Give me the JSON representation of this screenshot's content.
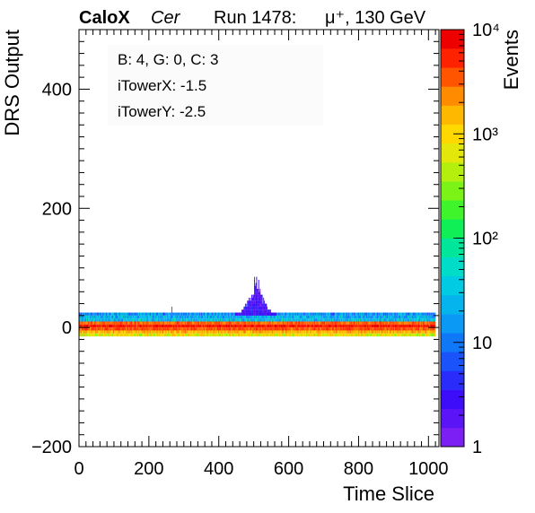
{
  "header": {
    "experiment": "CaloX",
    "channel": "Cer",
    "run": "Run 1478:",
    "beam": "μ⁺, 130 GeV"
  },
  "info_box": {
    "line1": "B: 4, G: 0, C: 3",
    "line2": "iTowerX: -1.5",
    "line3": "iTowerY: -2.5"
  },
  "chart_data": {
    "type": "heatmap",
    "xlabel": "Time Slice",
    "ylabel": "DRS Output",
    "zlabel": "Events",
    "xlim": [
      0,
      1030
    ],
    "ylim": [
      -200,
      500
    ],
    "z_scale": "log",
    "zlim": [
      1,
      10000
    ],
    "x_ticks": [
      0,
      200,
      400,
      600,
      800,
      1000
    ],
    "y_ticks": [
      -200,
      0,
      200,
      400
    ],
    "z_ticks": [
      "1",
      "10",
      "10²",
      "10³",
      "10⁴"
    ],
    "grid": false,
    "palette": [
      "#7b1ff4",
      "#5a14f6",
      "#3d0dfa",
      "#2a2cfa",
      "#1b53fa",
      "#0f78f9",
      "#0a99f4",
      "#06b4ed",
      "#00cbe3",
      "#00dcc7",
      "#00e69a",
      "#10ef55",
      "#3ff42a",
      "#7cf317",
      "#b5ef0e",
      "#e3e80a",
      "#ffd800",
      "#ffb800",
      "#ff8c00",
      "#ff5500",
      "#ff2200",
      "#ee0000"
    ],
    "bands": [
      {
        "y_range": [
          20,
          25
        ],
        "x_range": [
          0,
          1020
        ],
        "z_low": 5,
        "z_high": 40
      },
      {
        "y_range": [
          15,
          20
        ],
        "x_range": [
          0,
          1020
        ],
        "z_low": 8,
        "z_high": 60
      },
      {
        "y_range": [
          10,
          15
        ],
        "x_range": [
          0,
          1020
        ],
        "z_low": 10,
        "z_high": 80
      },
      {
        "y_range": [
          5,
          10
        ],
        "x_range": [
          0,
          1020
        ],
        "z_low": 2000,
        "z_high": 5000
      },
      {
        "y_range": [
          0,
          5
        ],
        "x_range": [
          0,
          1020
        ],
        "z_low": 4000,
        "z_high": 9000
      },
      {
        "y_range": [
          -5,
          0
        ],
        "x_range": [
          0,
          1020
        ],
        "z_low": 2500,
        "z_high": 6000
      },
      {
        "y_range": [
          -10,
          -5
        ],
        "x_range": [
          0,
          1020
        ],
        "z_low": 900,
        "z_high": 3000
      },
      {
        "y_range": [
          -15,
          -10
        ],
        "x_range": [
          0,
          1020
        ],
        "z_low": 300,
        "z_high": 1500
      }
    ],
    "pulse": {
      "x_center": 505,
      "x_halfwidth": 60,
      "y_range": [
        20,
        95
      ],
      "z_low": 1,
      "z_high": 4
    },
    "isolated_bins": [
      {
        "x": 265,
        "y_range": [
          25,
          35
        ],
        "z": 2
      }
    ]
  }
}
